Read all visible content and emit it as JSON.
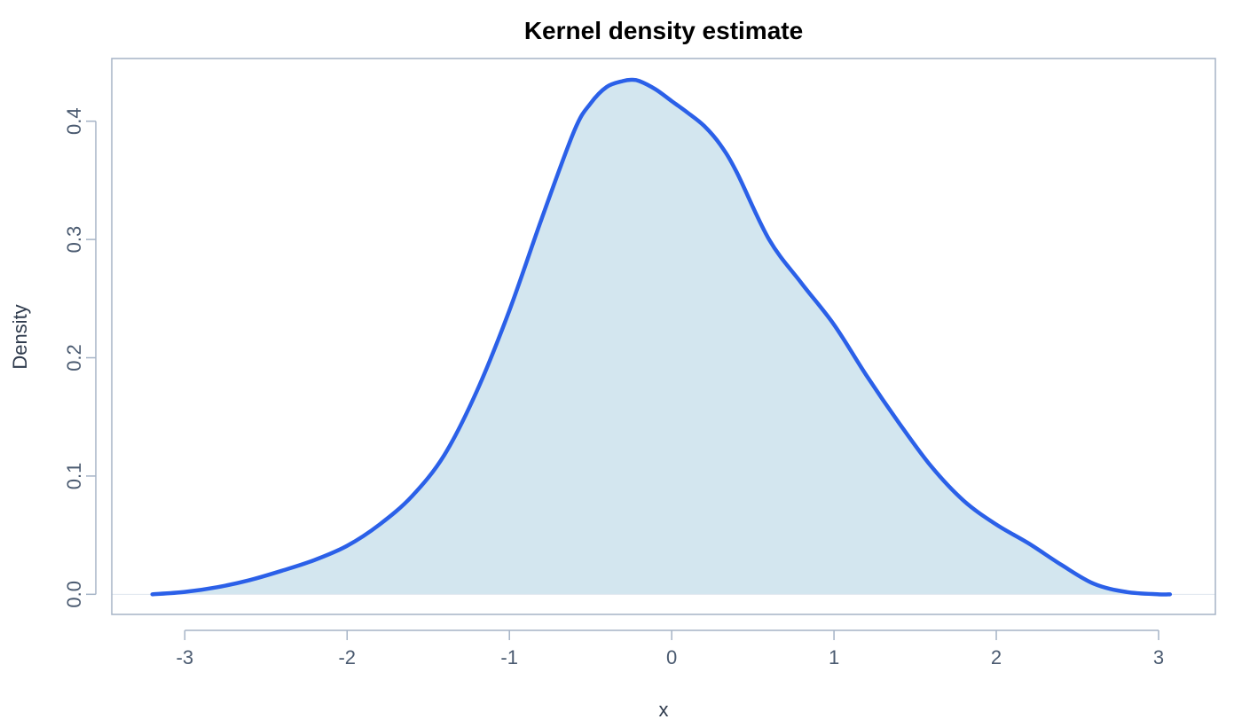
{
  "chart_data": {
    "type": "area",
    "title": "Kernel density estimate",
    "xlabel": "x",
    "ylabel": "Density",
    "xlim": [
      -3.45,
      3.35
    ],
    "ylim": [
      -0.017,
      0.453
    ],
    "x_ticks": [
      -3,
      -2,
      -1,
      0,
      1,
      2,
      3
    ],
    "x_tick_labels": [
      "-3",
      "-2",
      "-1",
      "0",
      "1",
      "2",
      "3"
    ],
    "y_ticks": [
      0.0,
      0.1,
      0.2,
      0.3,
      0.4
    ],
    "y_tick_labels": [
      "0.0",
      "0.1",
      "0.2",
      "0.3",
      "0.4"
    ],
    "grid": false,
    "series": [
      {
        "x": [
          -3.2,
          -3.0,
          -2.8,
          -2.6,
          -2.4,
          -2.2,
          -2.0,
          -1.8,
          -1.6,
          -1.4,
          -1.2,
          -1.0,
          -0.8,
          -0.6,
          -0.5,
          -0.4,
          -0.3,
          -0.25,
          -0.2,
          -0.1,
          0.0,
          0.1,
          0.2,
          0.3,
          0.4,
          0.6,
          0.8,
          1.0,
          1.2,
          1.4,
          1.6,
          1.8,
          2.0,
          2.2,
          2.4,
          2.6,
          2.8,
          3.0,
          3.07
        ],
        "y": [
          0.0,
          0.002,
          0.006,
          0.012,
          0.02,
          0.029,
          0.041,
          0.059,
          0.083,
          0.118,
          0.172,
          0.24,
          0.318,
          0.392,
          0.415,
          0.429,
          0.434,
          0.435,
          0.434,
          0.427,
          0.417,
          0.407,
          0.396,
          0.38,
          0.357,
          0.3,
          0.263,
          0.228,
          0.185,
          0.145,
          0.108,
          0.079,
          0.059,
          0.043,
          0.025,
          0.009,
          0.002,
          0.0,
          0.0
        ]
      }
    ],
    "colors": {
      "line": "#2b60e8",
      "fill": "#d3e6ef",
      "frame": "#a5b3c6",
      "baseline": "#dfe6ee"
    }
  }
}
